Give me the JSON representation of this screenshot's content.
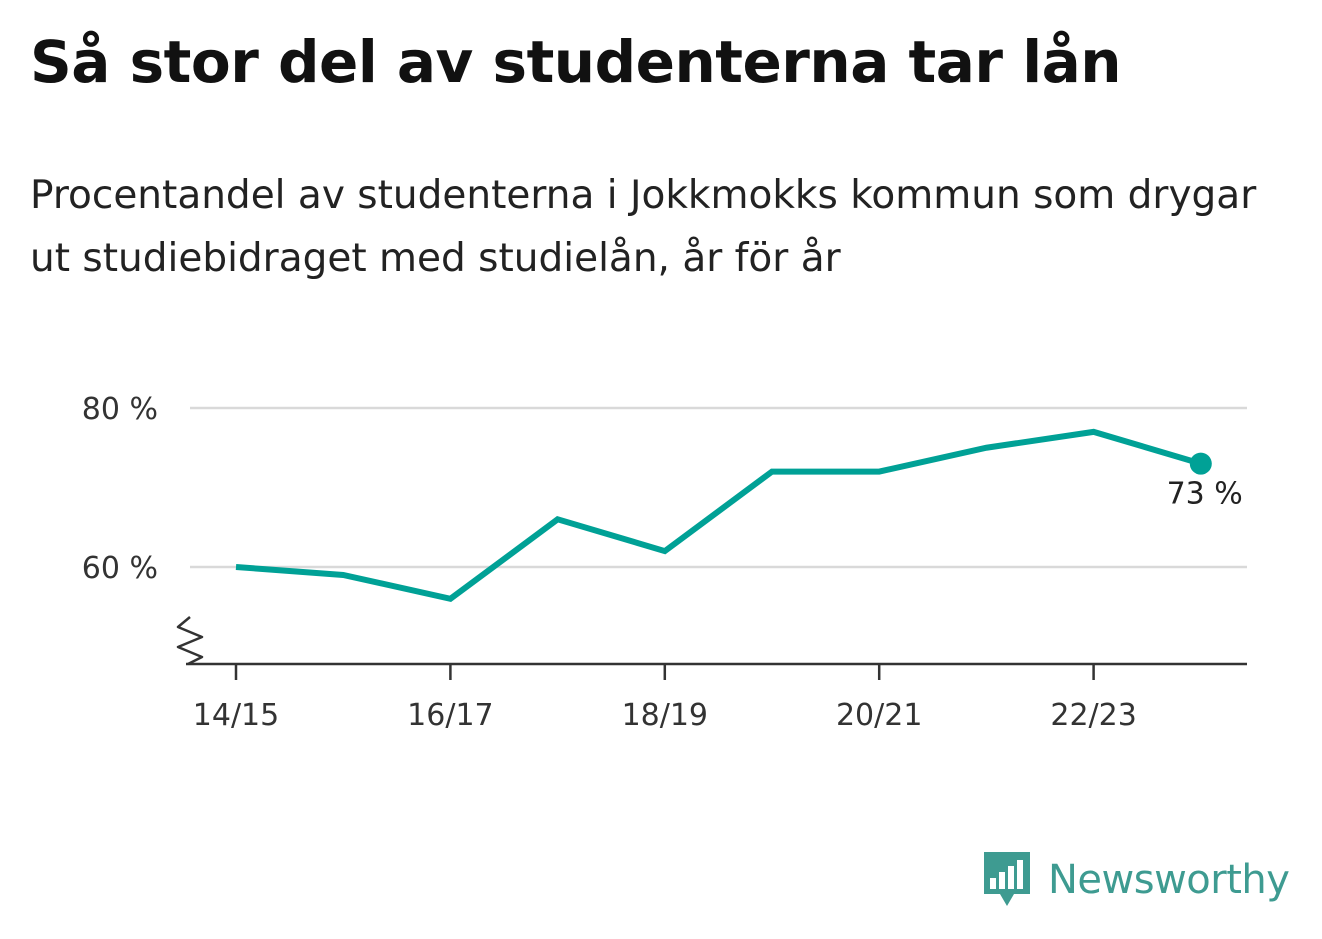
{
  "title": "Så stor del av studenterna tar lån",
  "subtitle": "Procentandel av studenterna i Jokkmokks kommun som drygar ut studiebidraget med studielån, år för år",
  "brand": {
    "name": "Newsworthy",
    "color": "#3e9b91",
    "icon": "newsworthy-bar-chart-icon"
  },
  "colors": {
    "line": "#00a196",
    "grid": "#d9d9d9",
    "axis": "#333333"
  },
  "chart_data": {
    "type": "line",
    "title": "Så stor del av studenterna tar lån",
    "subtitle": "Procentandel av studenterna i Jokkmokks kommun som drygar ut studiebidraget med studielån, år för år",
    "x": [
      "14/15",
      "15/16",
      "16/17",
      "17/18",
      "18/19",
      "19/20",
      "20/21",
      "21/22",
      "22/23",
      "23/24"
    ],
    "xticks": [
      "14/15",
      "16/17",
      "18/19",
      "20/21",
      "22/23"
    ],
    "series": [
      {
        "values": [
          60,
          59,
          56,
          66,
          62,
          72,
          72,
          75,
          77,
          73
        ]
      }
    ],
    "yticks": [
      60,
      80
    ],
    "ytick_labels": [
      "60 %",
      "80 %"
    ],
    "ylim": [
      48,
      80
    ],
    "y_axis_break": true,
    "grid": true,
    "legend": "none",
    "end_label": "73 %"
  }
}
